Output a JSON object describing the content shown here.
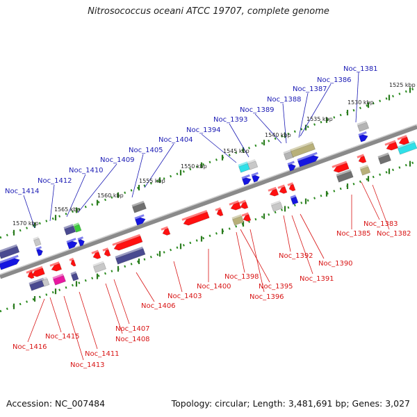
{
  "title": "Nitrosococcus oceani ATCC 19707, complete genome",
  "footer": {
    "accession": "Accession: NC_007484",
    "summary": "Topology: circular; Length: 3,481,691 bp; Genes: 3,027"
  },
  "colors": {
    "forward_label": "#1a1ab4",
    "reverse_label": "#d81414",
    "tick_green": "#2a8a1e",
    "backbone": "#8a8a8a"
  },
  "scale_labels": [
    "1525 kbp",
    "1530 kbp",
    "1535 kbp",
    "1540 kbp",
    "1545 kbp",
    "1550 kbp",
    "1555 kbp",
    "1560 kbp",
    "1565 kbp",
    "1570 kbp"
  ],
  "forward_genes": [
    "Noc_1381",
    "Noc_1386",
    "Noc_1387",
    "Noc_1388",
    "Noc_1389",
    "Noc_1393",
    "Noc_1394",
    "Noc_1404",
    "Noc_1405",
    "Noc_1409",
    "Noc_1410",
    "Noc_1412",
    "Noc_1414"
  ],
  "reverse_genes": [
    "Noc_1383",
    "Noc_1382",
    "Noc_1385",
    "Noc_1390",
    "Noc_1392",
    "Noc_1391",
    "Noc_1395",
    "Noc_1398",
    "Noc_1396",
    "Noc_1400",
    "Noc_1403",
    "Noc_1406",
    "Noc_1407",
    "Noc_1408",
    "Noc_1411",
    "Noc_1415",
    "Noc_1416",
    "Noc_1413"
  ]
}
